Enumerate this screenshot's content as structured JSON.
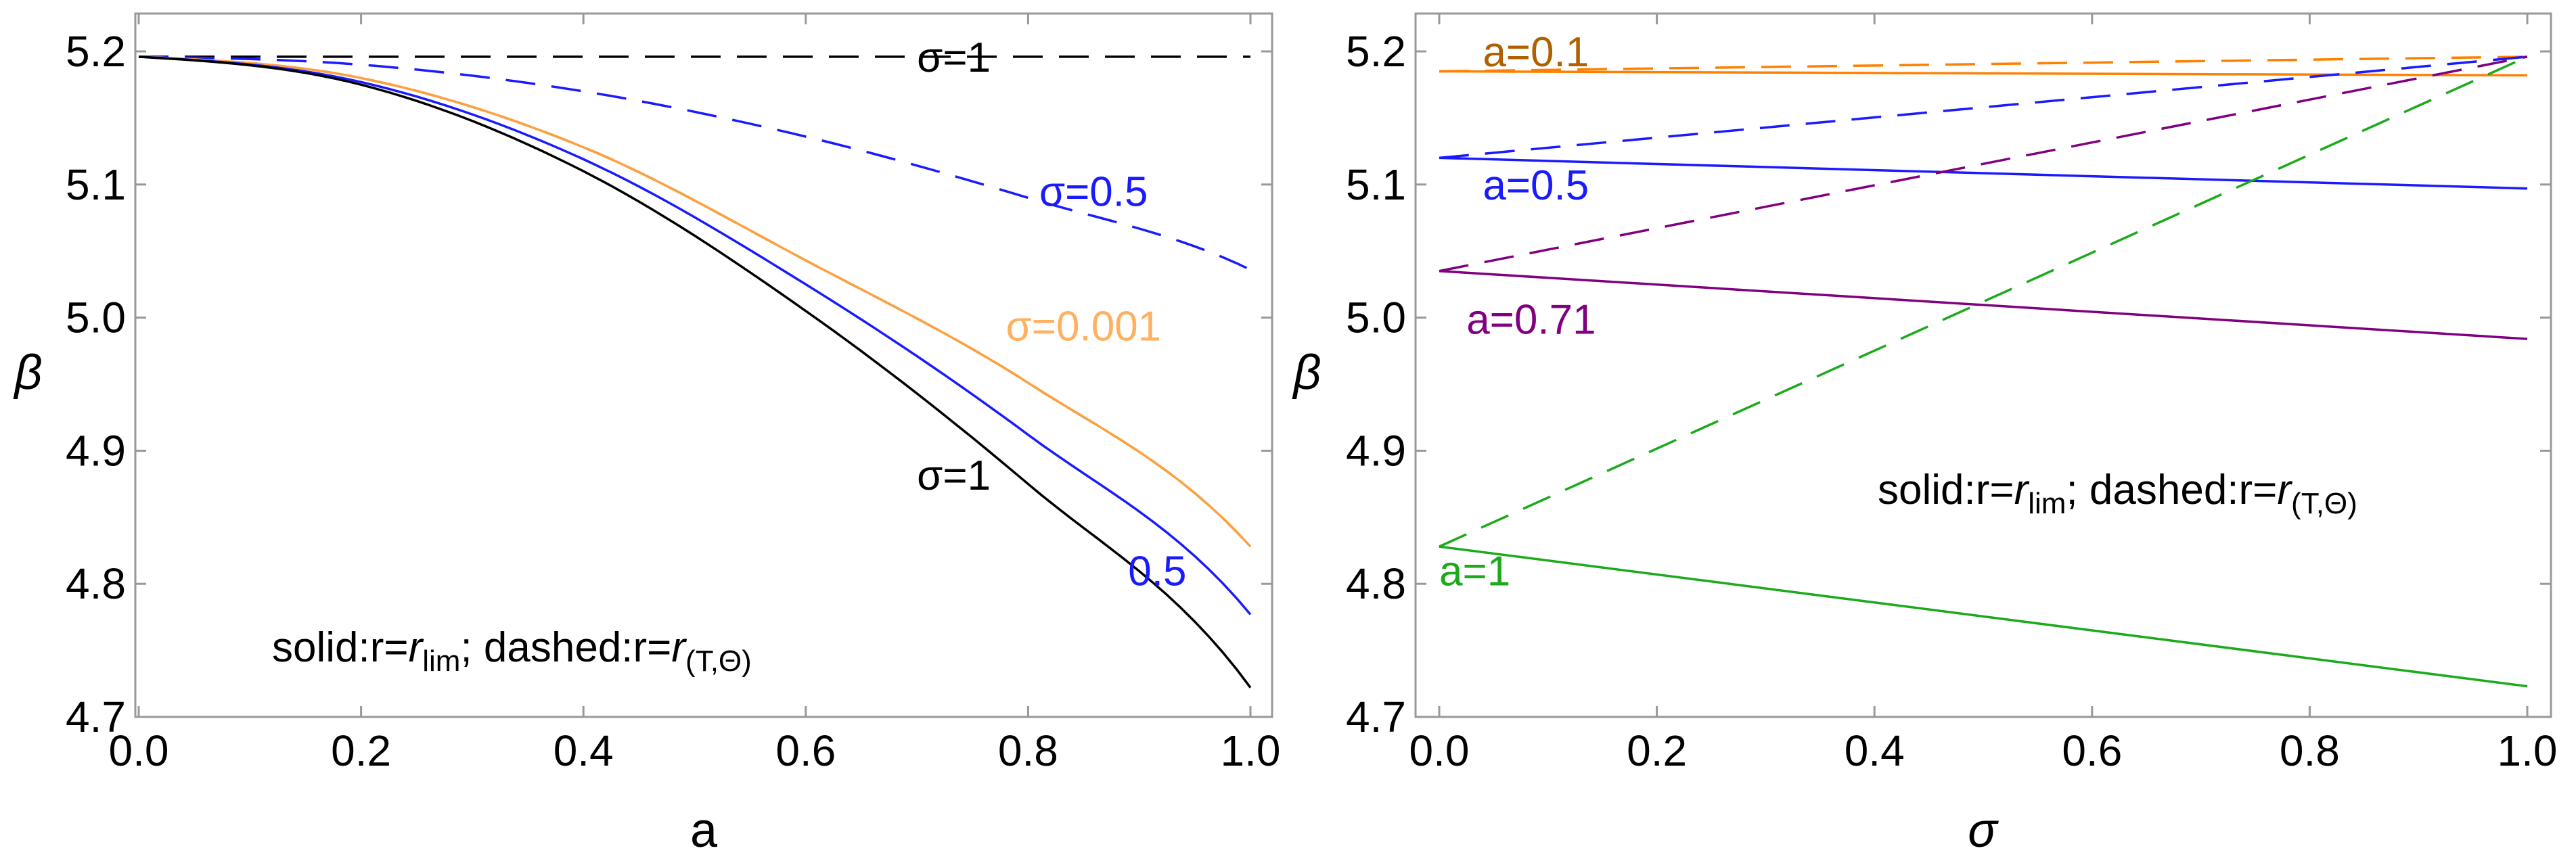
{
  "chart_data": [
    {
      "type": "line",
      "xlabel": "a",
      "ylabel": "β",
      "xlim": [
        0,
        1
      ],
      "ylim": [
        4.7,
        5.22
      ],
      "x_ticks": [
        "0.0",
        "0.2",
        "0.4",
        "0.6",
        "0.8",
        "1.0"
      ],
      "x_tick_values": [
        0,
        0.2,
        0.4,
        0.6,
        0.8,
        1.0
      ],
      "y_ticks": [
        "4.7",
        "4.8",
        "4.9",
        "5.0",
        "5.1",
        "5.2"
      ],
      "y_tick_values": [
        4.7,
        4.8,
        4.9,
        5.0,
        5.1,
        5.2
      ],
      "series": [
        {
          "name": "σ=1 (dashed: r=r_(T,Θ))",
          "style": "dashed",
          "color": "#000000",
          "x": [
            0,
            1
          ],
          "values": [
            5.196,
            5.196
          ]
        },
        {
          "name": "σ=0.5 (dashed: r=r_(T,Θ))",
          "style": "dashed",
          "color": "#1a1aff",
          "x": [
            0,
            0.2,
            0.4,
            0.6,
            0.8,
            1.0
          ],
          "values": [
            5.196,
            5.19,
            5.17,
            5.136,
            5.09,
            5.036
          ]
        },
        {
          "name": "σ=0.001 (dashed: r=r_(T,Θ))",
          "style": "dashed",
          "color": "#7a8a00",
          "x": [
            0,
            0.2,
            0.4,
            0.6,
            0.8,
            1.0
          ],
          "values": [
            5.196,
            5.18,
            5.128,
            5.043,
            4.951,
            4.828
          ]
        },
        {
          "name": "σ=0.001 (solid: r=r_lim)",
          "style": "solid",
          "color": "#ffa040",
          "x": [
            0,
            0.2,
            0.4,
            0.6,
            0.8,
            1.0
          ],
          "values": [
            5.196,
            5.18,
            5.128,
            5.043,
            4.951,
            4.828
          ]
        },
        {
          "name": "σ=0.5 (solid: r=r_lim)",
          "style": "solid",
          "color": "#1a1aff",
          "x": [
            0,
            0.2,
            0.4,
            0.6,
            0.8,
            1.0
          ],
          "values": [
            5.196,
            5.177,
            5.119,
            5.025,
            4.912,
            4.777
          ]
        },
        {
          "name": "σ=1 (solid: r=r_lim)",
          "style": "solid",
          "color": "#000000",
          "x": [
            0,
            0.2,
            0.4,
            0.6,
            0.8,
            1.0
          ],
          "values": [
            5.196,
            5.175,
            5.11,
            5.005,
            4.875,
            4.722
          ]
        }
      ],
      "annotations": [
        {
          "text": "σ=1",
          "color": "#000000",
          "x": 0.7,
          "y": 5.196
        },
        {
          "text": "σ=0.5",
          "color": "#1a1aff",
          "x": 0.81,
          "y": 5.095
        },
        {
          "text": "σ=0.001",
          "color": "#ffb060",
          "x": 0.78,
          "y": 4.994
        },
        {
          "text": "σ=1",
          "color": "#000000",
          "x": 0.7,
          "y": 4.882
        },
        {
          "text": "0.5",
          "color": "#1a1aff",
          "x": 0.89,
          "y": 4.81
        }
      ],
      "legend_text": {
        "solid": "solid:r=",
        "r_lim_base": "r",
        "r_lim_sub": "lim",
        "sep": "; dashed:r=",
        "r_t_base": "r",
        "r_t_sub": "(T,Θ)"
      }
    },
    {
      "type": "line",
      "xlabel": "σ",
      "ylabel": "β",
      "xlim": [
        0,
        1
      ],
      "ylim": [
        4.7,
        5.22
      ],
      "x_ticks": [
        "0.0",
        "0.2",
        "0.4",
        "0.6",
        "0.8",
        "1.0"
      ],
      "x_tick_values": [
        0,
        0.2,
        0.4,
        0.6,
        0.8,
        1.0
      ],
      "y_ticks": [
        "4.7",
        "4.8",
        "4.9",
        "5.0",
        "5.1",
        "5.2"
      ],
      "y_tick_values": [
        4.7,
        4.8,
        4.9,
        5.0,
        5.1,
        5.2
      ],
      "series": [
        {
          "name": "a=0.1 (solid)",
          "style": "solid",
          "color": "#ff8000",
          "x": [
            0,
            1
          ],
          "values": [
            5.185,
            5.182
          ]
        },
        {
          "name": "a=0.1 (dashed)",
          "style": "dashed",
          "color": "#ff8000",
          "x": [
            0,
            1
          ],
          "values": [
            5.185,
            5.196
          ]
        },
        {
          "name": "a=0.5 (solid)",
          "style": "solid",
          "color": "#1a1aff",
          "x": [
            0,
            1
          ],
          "values": [
            5.12,
            5.097
          ]
        },
        {
          "name": "a=0.5 (dashed)",
          "style": "dashed",
          "color": "#1a1aff",
          "x": [
            0,
            1
          ],
          "values": [
            5.12,
            5.196
          ]
        },
        {
          "name": "a=0.71 (solid)",
          "style": "solid",
          "color": "#800080",
          "x": [
            0,
            1
          ],
          "values": [
            5.035,
            4.984
          ]
        },
        {
          "name": "a=0.71 (dashed)",
          "style": "dashed",
          "color": "#800080",
          "x": [
            0,
            1
          ],
          "values": [
            5.035,
            5.196
          ]
        },
        {
          "name": "a=1 (solid)",
          "style": "solid",
          "color": "#1aaa1a",
          "x": [
            0,
            1
          ],
          "values": [
            4.828,
            4.723
          ]
        },
        {
          "name": "a=1 (dashed)",
          "style": "dashed",
          "color": "#1aaa1a",
          "x": [
            0,
            1
          ],
          "values": [
            4.828,
            5.196
          ]
        }
      ],
      "annotations": [
        {
          "text": "a=0.1",
          "color": "#b06000",
          "x": 0.04,
          "y": 5.2
        },
        {
          "text": "a=0.5",
          "color": "#1a1aff",
          "x": 0.04,
          "y": 5.1
        },
        {
          "text": "a=0.71",
          "color": "#800080",
          "x": 0.025,
          "y": 4.999
        },
        {
          "text": "a=1",
          "color": "#1aaa1a",
          "x": 0.0,
          "y": 4.81
        }
      ],
      "legend_text": {
        "solid": "solid:r=",
        "r_lim_base": "r",
        "r_lim_sub": "lim",
        "sep": "; dashed:r=",
        "r_t_base": "r",
        "r_t_sub": "(T,Θ)"
      }
    }
  ]
}
